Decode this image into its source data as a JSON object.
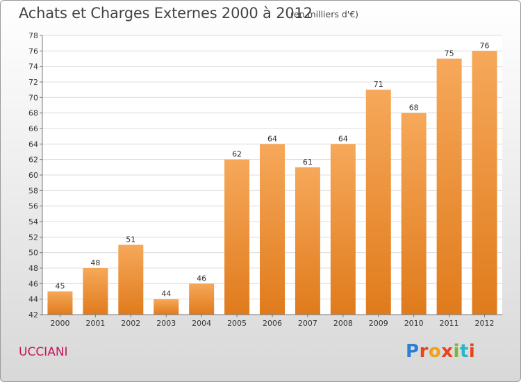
{
  "chart_data": {
    "type": "bar",
    "title": "Achats et Charges Externes 2000 à 2012",
    "subtitle": "(en milliers d'€)",
    "categories": [
      "2000",
      "2001",
      "2002",
      "2003",
      "2004",
      "2005",
      "2006",
      "2007",
      "2008",
      "2009",
      "2010",
      "2011",
      "2012"
    ],
    "values": [
      45,
      48,
      51,
      44,
      46,
      62,
      64,
      61,
      64,
      71,
      68,
      75,
      76
    ],
    "ylim": [
      42,
      78
    ],
    "yticks": [
      42,
      44,
      46,
      48,
      50,
      52,
      54,
      56,
      58,
      60,
      62,
      64,
      66,
      68,
      70,
      72,
      74,
      76,
      78
    ],
    "grid": true,
    "bar_color": "#f0922e",
    "bar_color_top": "#f6a85a",
    "bar_color_bottom": "#e07b1c"
  },
  "commune": "UCCIANI",
  "logo": {
    "letters": [
      "P",
      "r",
      "o",
      "x",
      "i",
      "t",
      "i"
    ]
  }
}
